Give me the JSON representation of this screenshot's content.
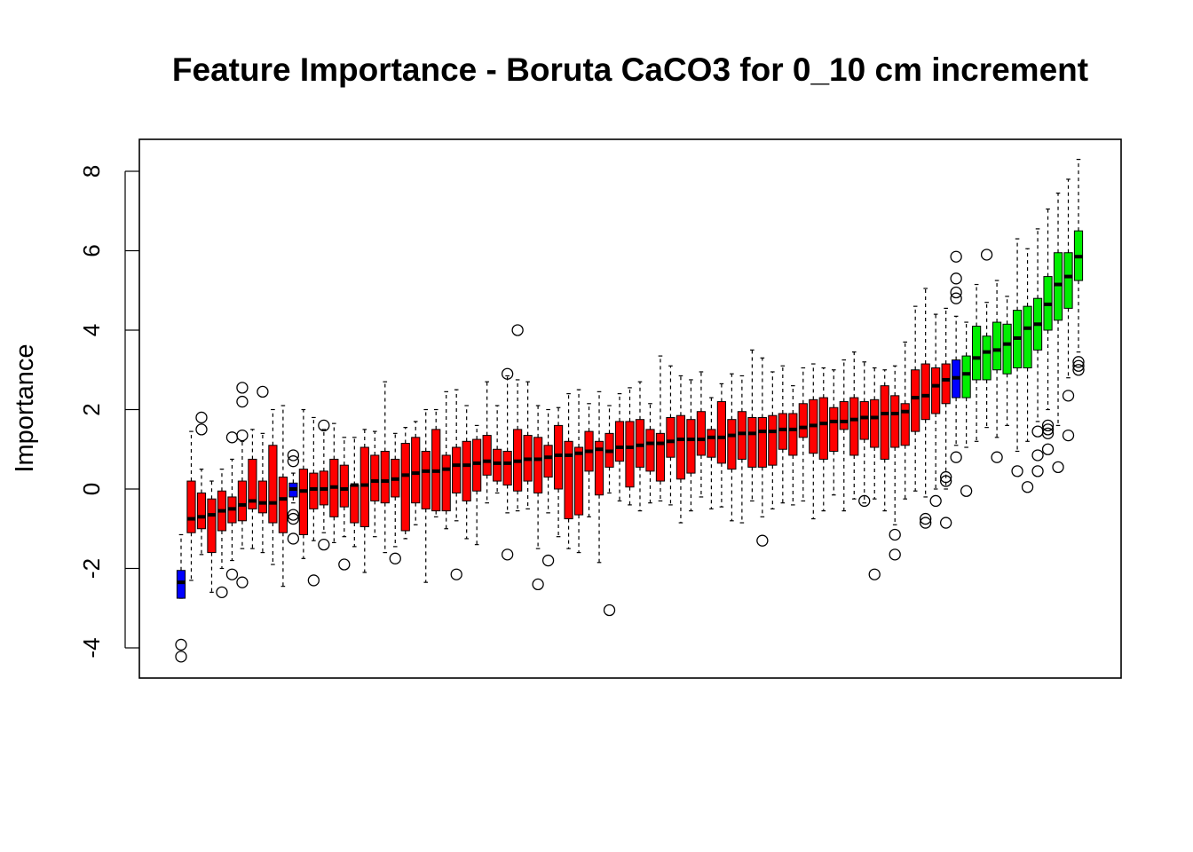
{
  "chart_data": {
    "type": "boxplot",
    "title": "Feature Importance - Boruta CaCO3 for 0_10 cm increment",
    "xlabel": "",
    "ylabel": "Importance",
    "ylim": [
      -4.5,
      9.0
    ],
    "yticks": [
      -4,
      -2,
      0,
      2,
      4,
      6,
      8
    ],
    "x_tick_labels_shown": false,
    "colors": {
      "shadow": "#0000FF",
      "rejected": "#FF0000",
      "confirmed": "#00EE00"
    },
    "boxes": [
      {
        "status": "shadow",
        "stats": [
          -2.75,
          -2.75,
          -2.35,
          -2.05,
          -1.15
        ],
        "outliers": [
          -3.92,
          -4.22
        ]
      },
      {
        "status": "rejected",
        "stats": [
          -2.3,
          -1.1,
          -0.75,
          0.2,
          1.45
        ],
        "outliers": []
      },
      {
        "status": "rejected",
        "stats": [
          -1.65,
          -1.0,
          -0.7,
          -0.1,
          0.5
        ],
        "outliers": [
          1.8,
          1.5
        ]
      },
      {
        "status": "rejected",
        "stats": [
          -2.6,
          -1.6,
          -0.65,
          -0.25,
          0.2
        ],
        "outliers": []
      },
      {
        "status": "rejected",
        "stats": [
          -2.0,
          -1.05,
          -0.55,
          -0.05,
          0.5
        ],
        "outliers": [
          -2.6
        ]
      },
      {
        "status": "rejected",
        "stats": [
          -1.8,
          -0.85,
          -0.5,
          -0.2,
          0.75
        ],
        "outliers": [
          1.3,
          -2.15
        ]
      },
      {
        "status": "rejected",
        "stats": [
          -1.5,
          -0.8,
          -0.4,
          0.2,
          1.2
        ],
        "outliers": [
          2.55,
          2.2,
          1.35,
          -2.35
        ]
      },
      {
        "status": "rejected",
        "stats": [
          -1.5,
          -0.5,
          -0.3,
          0.75,
          1.5
        ],
        "outliers": []
      },
      {
        "status": "rejected",
        "stats": [
          -1.6,
          -0.6,
          -0.35,
          0.2,
          1.4
        ],
        "outliers": [
          2.45
        ]
      },
      {
        "status": "rejected",
        "stats": [
          -1.9,
          -0.85,
          -0.35,
          1.1,
          2.0
        ],
        "outliers": []
      },
      {
        "status": "rejected",
        "stats": [
          -2.45,
          -1.1,
          -0.25,
          0.3,
          2.1
        ],
        "outliers": []
      },
      {
        "status": "shadow",
        "stats": [
          -0.35,
          -0.2,
          0.0,
          0.15,
          0.4
        ],
        "outliers": [
          0.85,
          0.7,
          -0.65,
          -0.75,
          -1.25
        ]
      },
      {
        "status": "rejected",
        "stats": [
          -1.75,
          -1.15,
          -0.05,
          0.5,
          2.0
        ],
        "outliers": []
      },
      {
        "status": "rejected",
        "stats": [
          -1.3,
          -0.5,
          0.0,
          0.4,
          1.8
        ],
        "outliers": [
          -2.3
        ]
      },
      {
        "status": "rejected",
        "stats": [
          -1.1,
          -0.4,
          0.0,
          0.45,
          1.5
        ],
        "outliers": [
          1.6,
          -1.4
        ]
      },
      {
        "status": "rejected",
        "stats": [
          -1.35,
          -0.7,
          0.05,
          0.75,
          1.65
        ],
        "outliers": []
      },
      {
        "status": "rejected",
        "stats": [
          -1.2,
          -0.45,
          0.0,
          0.6,
          1.3
        ],
        "outliers": [
          -1.9
        ]
      },
      {
        "status": "rejected",
        "stats": [
          -1.45,
          -0.85,
          0.1,
          0.1,
          1.3
        ],
        "outliers": []
      },
      {
        "status": "rejected",
        "stats": [
          -2.1,
          -0.95,
          0.1,
          1.05,
          1.5
        ],
        "outliers": []
      },
      {
        "status": "rejected",
        "stats": [
          -1.2,
          -0.3,
          0.2,
          0.85,
          1.45
        ],
        "outliers": []
      },
      {
        "status": "rejected",
        "stats": [
          -1.6,
          -0.35,
          0.2,
          0.95,
          2.7
        ],
        "outliers": []
      },
      {
        "status": "rejected",
        "stats": [
          -1.45,
          -0.2,
          0.25,
          0.75,
          1.4
        ],
        "outliers": [
          -1.75
        ]
      },
      {
        "status": "rejected",
        "stats": [
          -1.25,
          -1.05,
          0.35,
          1.15,
          1.55
        ],
        "outliers": []
      },
      {
        "status": "rejected",
        "stats": [
          -0.9,
          -0.35,
          0.4,
          1.3,
          1.7
        ],
        "outliers": []
      },
      {
        "status": "rejected",
        "stats": [
          -2.35,
          -0.5,
          0.45,
          0.95,
          2.0
        ],
        "outliers": []
      },
      {
        "status": "rejected",
        "stats": [
          -0.7,
          -0.55,
          0.45,
          1.5,
          2.0
        ],
        "outliers": []
      },
      {
        "status": "rejected",
        "stats": [
          -1.0,
          -0.55,
          0.5,
          0.85,
          2.45
        ],
        "outliers": []
      },
      {
        "status": "rejected",
        "stats": [
          -0.8,
          -0.1,
          0.6,
          1.05,
          2.5
        ],
        "outliers": [
          -2.15
        ]
      },
      {
        "status": "rejected",
        "stats": [
          -1.25,
          -0.3,
          0.6,
          1.2,
          2.1
        ],
        "outliers": []
      },
      {
        "status": "rejected",
        "stats": [
          -1.4,
          -0.05,
          0.65,
          1.25,
          1.6
        ],
        "outliers": []
      },
      {
        "status": "rejected",
        "stats": [
          -0.35,
          0.35,
          0.7,
          1.35,
          2.7
        ],
        "outliers": []
      },
      {
        "status": "rejected",
        "stats": [
          -0.1,
          0.2,
          0.65,
          1.0,
          2.1
        ],
        "outliers": []
      },
      {
        "status": "rejected",
        "stats": [
          -0.6,
          0.1,
          0.65,
          0.95,
          2.85
        ],
        "outliers": [
          2.9,
          -1.65
        ]
      },
      {
        "status": "rejected",
        "stats": [
          -0.55,
          -0.05,
          0.7,
          1.5,
          2.75
        ],
        "outliers": [
          4.0
        ]
      },
      {
        "status": "rejected",
        "stats": [
          -0.5,
          0.2,
          0.75,
          1.35,
          2.7
        ],
        "outliers": []
      },
      {
        "status": "rejected",
        "stats": [
          -1.5,
          -0.1,
          0.75,
          1.3,
          2.1
        ],
        "outliers": [
          -2.4
        ]
      },
      {
        "status": "rejected",
        "stats": [
          -0.6,
          0.3,
          0.8,
          1.1,
          2.0
        ],
        "outliers": [
          -1.8
        ]
      },
      {
        "status": "rejected",
        "stats": [
          -1.2,
          0.0,
          0.85,
          1.6,
          2.05
        ],
        "outliers": []
      },
      {
        "status": "rejected",
        "stats": [
          -1.5,
          -0.75,
          0.85,
          1.2,
          2.4
        ],
        "outliers": []
      },
      {
        "status": "rejected",
        "stats": [
          -1.6,
          -0.65,
          0.9,
          1.05,
          2.5
        ],
        "outliers": []
      },
      {
        "status": "rejected",
        "stats": [
          -0.7,
          0.45,
          0.95,
          1.45,
          2.15
        ],
        "outliers": []
      },
      {
        "status": "rejected",
        "stats": [
          -1.85,
          -0.15,
          1.0,
          1.2,
          2.45
        ],
        "outliers": []
      },
      {
        "status": "rejected",
        "stats": [
          -0.1,
          0.55,
          0.95,
          1.4,
          2.1
        ],
        "outliers": [
          -3.05
        ]
      },
      {
        "status": "rejected",
        "stats": [
          -0.3,
          0.7,
          1.05,
          1.7,
          2.4
        ],
        "outliers": []
      },
      {
        "status": "rejected",
        "stats": [
          -0.4,
          0.05,
          1.05,
          1.7,
          2.55
        ],
        "outliers": []
      },
      {
        "status": "rejected",
        "stats": [
          -0.55,
          0.55,
          1.1,
          1.75,
          2.7
        ],
        "outliers": []
      },
      {
        "status": "rejected",
        "stats": [
          -0.35,
          0.45,
          1.15,
          1.5,
          2.15
        ],
        "outliers": []
      },
      {
        "status": "rejected",
        "stats": [
          -0.3,
          0.2,
          1.15,
          1.4,
          3.35
        ],
        "outliers": []
      },
      {
        "status": "rejected",
        "stats": [
          -0.4,
          0.8,
          1.2,
          1.8,
          3.1
        ],
        "outliers": []
      },
      {
        "status": "rejected",
        "stats": [
          -0.85,
          0.25,
          1.25,
          1.85,
          2.85
        ],
        "outliers": []
      },
      {
        "status": "rejected",
        "stats": [
          -0.55,
          0.4,
          1.25,
          1.75,
          2.75
        ],
        "outliers": []
      },
      {
        "status": "rejected",
        "stats": [
          -0.2,
          0.85,
          1.25,
          1.95,
          2.95
        ],
        "outliers": []
      },
      {
        "status": "rejected",
        "stats": [
          -0.5,
          0.8,
          1.3,
          1.5,
          2.3
        ],
        "outliers": []
      },
      {
        "status": "rejected",
        "stats": [
          -0.45,
          0.65,
          1.3,
          2.2,
          2.65
        ],
        "outliers": []
      },
      {
        "status": "rejected",
        "stats": [
          -0.8,
          0.5,
          1.35,
          1.75,
          2.9
        ],
        "outliers": []
      },
      {
        "status": "rejected",
        "stats": [
          -0.85,
          0.75,
          1.4,
          1.95,
          2.85
        ],
        "outliers": []
      },
      {
        "status": "rejected",
        "stats": [
          -0.3,
          0.55,
          1.4,
          1.8,
          3.5
        ],
        "outliers": []
      },
      {
        "status": "rejected",
        "stats": [
          -0.7,
          0.55,
          1.45,
          1.8,
          3.3
        ],
        "outliers": [
          -1.3
        ]
      },
      {
        "status": "rejected",
        "stats": [
          -0.5,
          0.6,
          1.45,
          1.85,
          2.95
        ],
        "outliers": []
      },
      {
        "status": "rejected",
        "stats": [
          -0.35,
          1.0,
          1.5,
          1.9,
          3.1
        ],
        "outliers": []
      },
      {
        "status": "rejected",
        "stats": [
          -0.4,
          0.85,
          1.5,
          1.9,
          2.6
        ],
        "outliers": []
      },
      {
        "status": "rejected",
        "stats": [
          -0.3,
          1.3,
          1.55,
          2.15,
          3.05
        ],
        "outliers": []
      },
      {
        "status": "rejected",
        "stats": [
          -0.75,
          0.9,
          1.6,
          2.25,
          3.15
        ],
        "outliers": []
      },
      {
        "status": "rejected",
        "stats": [
          -0.55,
          0.75,
          1.65,
          2.3,
          3.05
        ],
        "outliers": []
      },
      {
        "status": "rejected",
        "stats": [
          -0.15,
          0.95,
          1.7,
          2.05,
          3.0
        ],
        "outliers": []
      },
      {
        "status": "rejected",
        "stats": [
          -0.55,
          1.5,
          1.7,
          2.2,
          3.25
        ],
        "outliers": []
      },
      {
        "status": "rejected",
        "stats": [
          -0.25,
          0.85,
          1.75,
          2.3,
          3.45
        ],
        "outliers": []
      },
      {
        "status": "rejected",
        "stats": [
          -0.35,
          1.25,
          1.8,
          2.2,
          3.2
        ],
        "outliers": [
          -0.3
        ]
      },
      {
        "status": "rejected",
        "stats": [
          -0.25,
          1.05,
          1.8,
          2.25,
          3.05
        ],
        "outliers": [
          -2.15
        ]
      },
      {
        "status": "rejected",
        "stats": [
          -0.55,
          0.75,
          1.9,
          2.6,
          3.0
        ],
        "outliers": []
      },
      {
        "status": "rejected",
        "stats": [
          -0.9,
          1.05,
          1.9,
          2.35,
          3.1
        ],
        "outliers": [
          -1.15,
          -1.65
        ]
      },
      {
        "status": "rejected",
        "stats": [
          -0.25,
          1.1,
          1.95,
          2.15,
          3.7
        ],
        "outliers": []
      },
      {
        "status": "rejected",
        "stats": [
          -0.05,
          1.45,
          2.3,
          3.0,
          4.6
        ],
        "outliers": []
      },
      {
        "status": "rejected",
        "stats": [
          -0.2,
          1.75,
          2.35,
          3.15,
          5.05
        ],
        "outliers": [
          -0.75,
          -0.85
        ]
      },
      {
        "status": "rejected",
        "stats": [
          0.0,
          1.9,
          2.6,
          3.05,
          4.4
        ],
        "outliers": [
          -0.3
        ]
      },
      {
        "status": "rejected",
        "stats": [
          0.0,
          2.15,
          2.75,
          3.15,
          4.55
        ],
        "outliers": [
          0.3,
          0.2,
          -0.85
        ]
      },
      {
        "status": "shadow",
        "stats": [
          1.1,
          2.3,
          2.8,
          3.25,
          4.35
        ],
        "outliers": [
          5.85,
          5.3,
          4.95,
          4.8,
          0.8
        ]
      },
      {
        "status": "confirmed",
        "stats": [
          1.05,
          2.3,
          2.9,
          3.35,
          4.2
        ],
        "outliers": [
          -0.05
        ]
      },
      {
        "status": "confirmed",
        "stats": [
          1.2,
          2.75,
          3.3,
          4.1,
          5.15
        ],
        "outliers": []
      },
      {
        "status": "confirmed",
        "stats": [
          1.55,
          2.75,
          3.45,
          3.85,
          4.7
        ],
        "outliers": [
          5.9
        ]
      },
      {
        "status": "confirmed",
        "stats": [
          1.3,
          3.0,
          3.5,
          4.2,
          5.25
        ],
        "outliers": [
          0.8
        ]
      },
      {
        "status": "confirmed",
        "stats": [
          1.6,
          2.9,
          3.65,
          4.15,
          4.85
        ],
        "outliers": []
      },
      {
        "status": "confirmed",
        "stats": [
          0.95,
          3.05,
          3.8,
          4.5,
          6.3
        ],
        "outliers": [
          0.45
        ]
      },
      {
        "status": "confirmed",
        "stats": [
          1.2,
          3.05,
          4.05,
          4.6,
          6.05
        ],
        "outliers": [
          0.05
        ]
      },
      {
        "status": "confirmed",
        "stats": [
          1.7,
          3.5,
          4.15,
          4.8,
          6.55
        ],
        "outliers": [
          1.45,
          0.85,
          0.45
        ]
      },
      {
        "status": "confirmed",
        "stats": [
          2.0,
          4.0,
          4.65,
          5.35,
          7.05
        ],
        "outliers": [
          1.6,
          1.5,
          1.4,
          1.0
        ]
      },
      {
        "status": "confirmed",
        "stats": [
          1.6,
          4.25,
          5.15,
          5.95,
          7.45
        ],
        "outliers": [
          0.55
        ]
      },
      {
        "status": "confirmed",
        "stats": [
          2.8,
          4.55,
          5.35,
          5.95,
          7.8
        ],
        "outliers": [
          2.35,
          1.35
        ]
      },
      {
        "status": "confirmed",
        "stats": [
          3.45,
          5.25,
          5.85,
          6.5,
          8.3
        ],
        "outliers": [
          3.2,
          3.1,
          3.0
        ]
      }
    ]
  }
}
